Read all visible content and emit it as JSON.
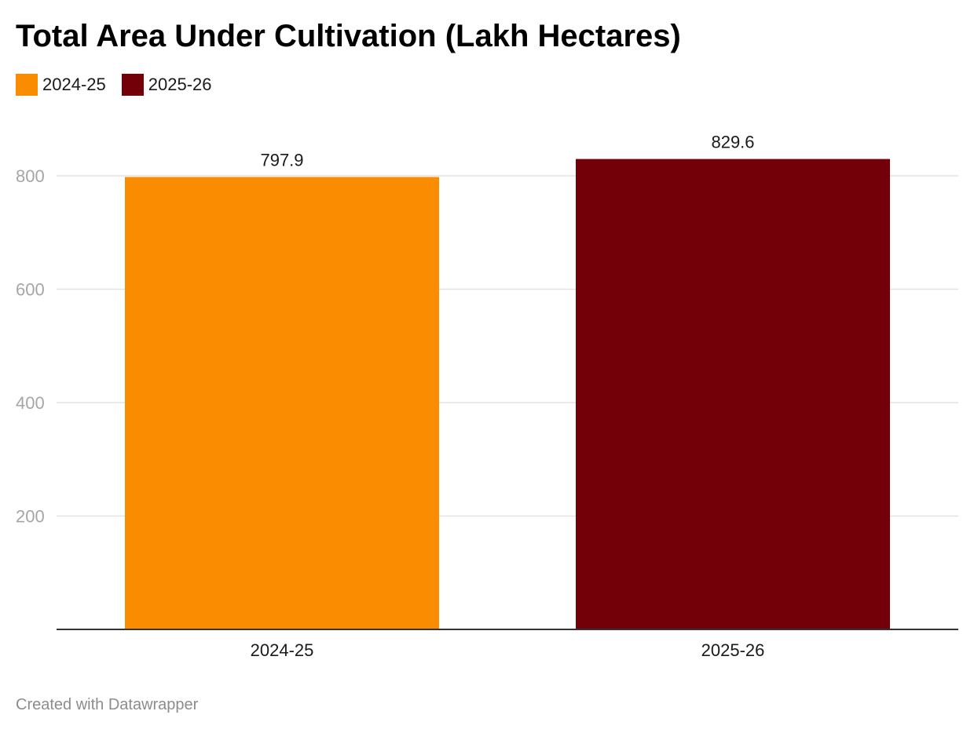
{
  "chart_data": {
    "type": "bar",
    "title": "Total Area Under Cultivation (Lakh Hectares)",
    "categories": [
      "2024-25",
      "2025-26"
    ],
    "values": [
      797.9,
      829.6
    ],
    "value_labels": [
      "797.9",
      "829.6"
    ],
    "colors": [
      "#F98C00",
      "#730008"
    ],
    "legend": [
      {
        "label": "2024-25",
        "color": "#F98C00"
      },
      {
        "label": "2025-26",
        "color": "#730008"
      }
    ],
    "legend_placement": "top-left",
    "ylim": [
      0,
      900
    ],
    "yticks": [
      200,
      400,
      600,
      800
    ],
    "grid": true,
    "xlabel": "",
    "ylabel": ""
  },
  "footer": {
    "credit": "Created with Datawrapper"
  }
}
